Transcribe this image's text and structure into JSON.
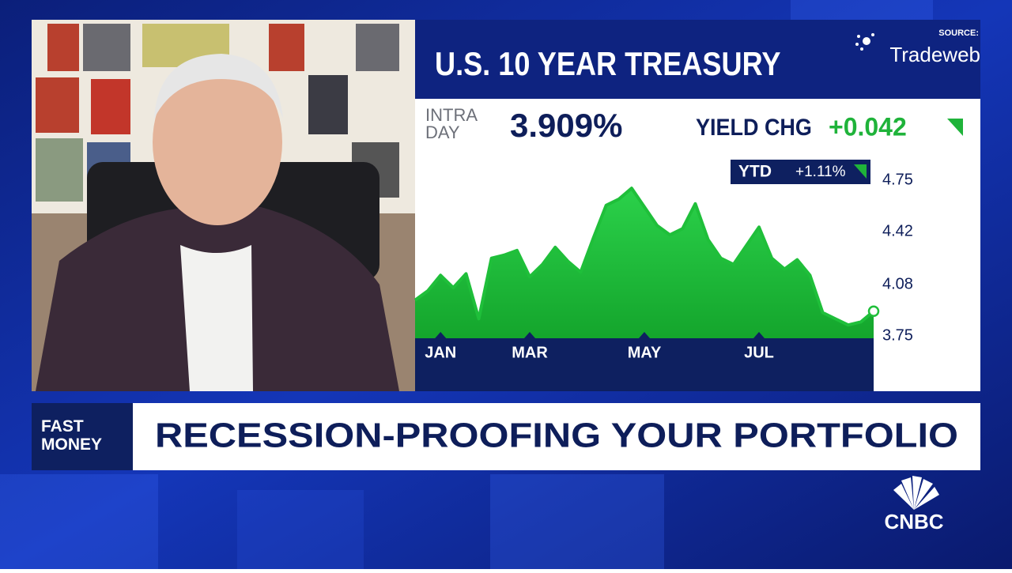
{
  "chart_data": {
    "type": "area",
    "title": "U.S. 10 YEAR TREASURY",
    "source_label": "SOURCE:",
    "source": "Tradeweb",
    "intraday_label": "INTRA DAY",
    "intraday_yield": "3.909%",
    "change_label": "YIELD CHG",
    "change": "+0.042",
    "ytd_label": "YTD",
    "ytd": "+1.11%",
    "categories": [
      null,
      null,
      "JAN",
      null,
      null,
      null,
      null,
      null,
      null,
      "MAR",
      null,
      null,
      null,
      null,
      null,
      null,
      null,
      null,
      "MAY",
      null,
      null,
      null,
      null,
      null,
      null,
      null,
      null,
      "JUL",
      null,
      null,
      null,
      null,
      null,
      null,
      null,
      null,
      null
    ],
    "values": [
      3.98,
      4.04,
      4.14,
      4.06,
      4.15,
      3.86,
      4.25,
      4.27,
      4.3,
      4.13,
      4.21,
      4.32,
      4.23,
      4.16,
      4.38,
      4.59,
      4.63,
      4.7,
      4.58,
      4.46,
      4.4,
      4.44,
      4.6,
      4.37,
      4.25,
      4.21,
      4.33,
      4.45,
      4.25,
      4.18,
      4.24,
      4.14,
      3.9,
      3.86,
      3.82,
      3.84,
      3.909
    ],
    "color": "#1fbf3a",
    "ylim": [
      3.75,
      4.95
    ],
    "yticks": [
      3.75,
      4.08,
      4.42,
      4.75
    ],
    "grid": false
  },
  "lower_third": {
    "show": "FAST MONEY",
    "headline": "RECESSION-PROOFING YOUR PORTFOLIO",
    "network": "CNBC"
  }
}
